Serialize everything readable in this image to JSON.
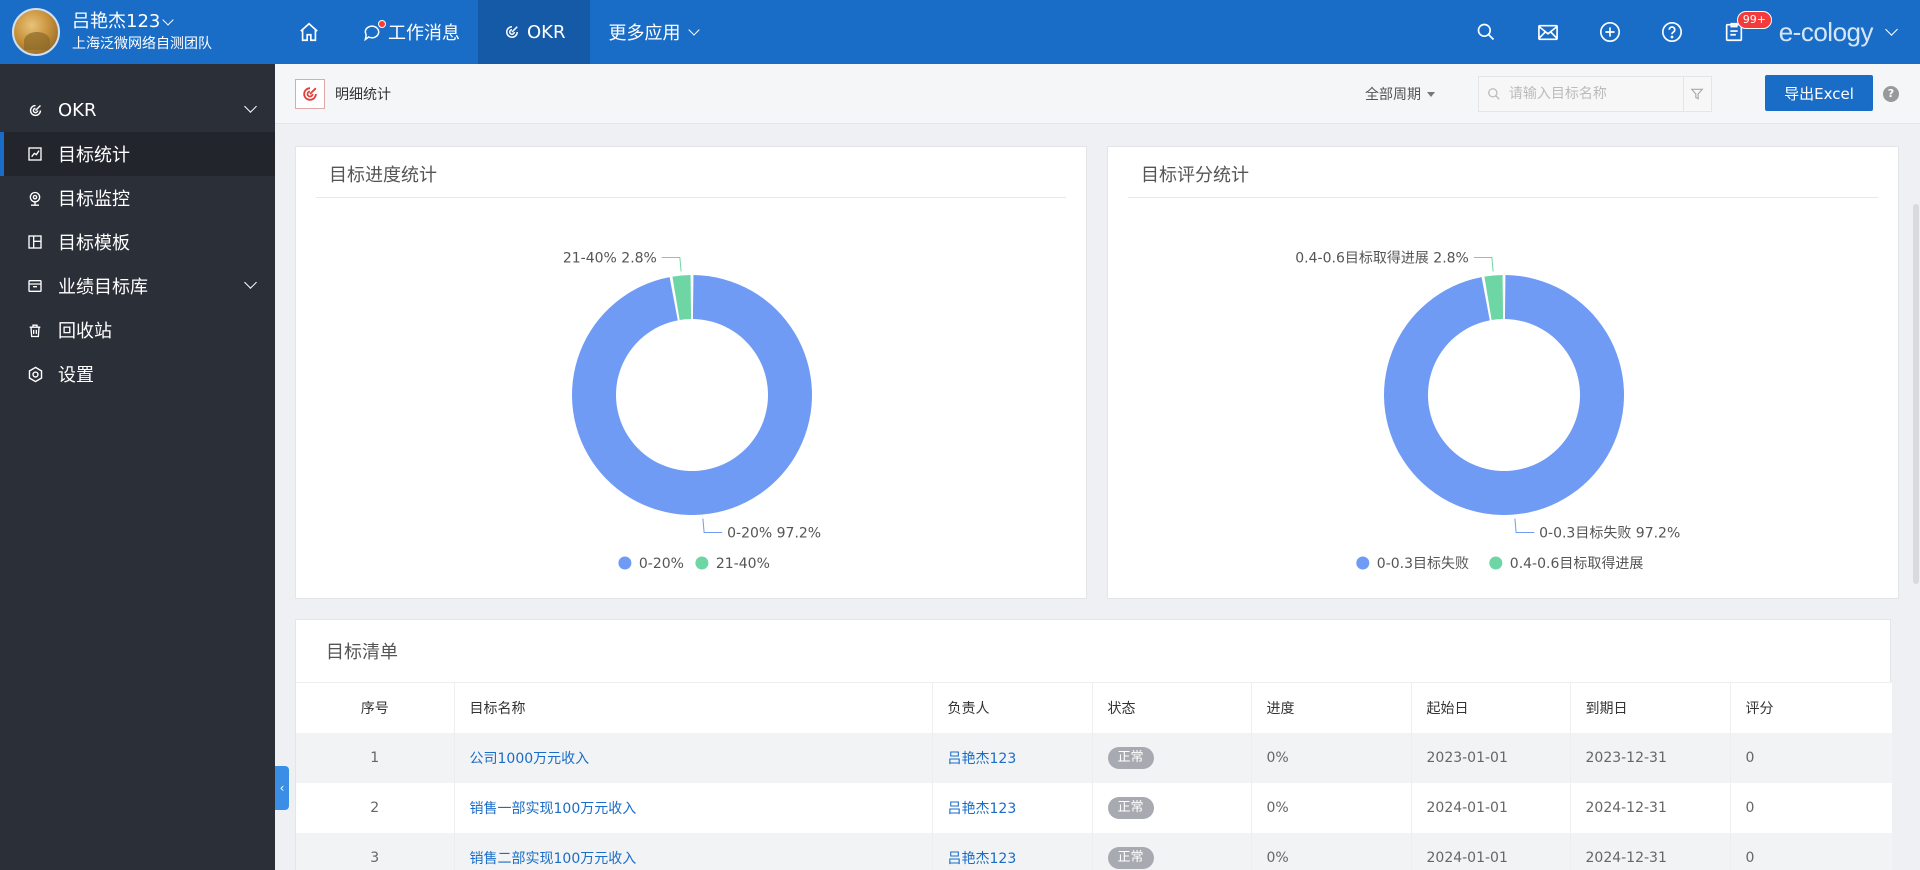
{
  "user": {
    "name": "吕艳杰123",
    "org": "上海泛微网络自测团队"
  },
  "nav": {
    "messages_label": "工作消息",
    "okr_label": "OKR",
    "more_label": "更多应用"
  },
  "header": {
    "badge": "99+",
    "brand": "e-cology"
  },
  "sidebar": {
    "items": [
      {
        "label": "OKR"
      },
      {
        "label": "目标统计"
      },
      {
        "label": "目标监控"
      },
      {
        "label": "目标模板"
      },
      {
        "label": "业绩目标库"
      },
      {
        "label": "回收站"
      },
      {
        "label": "设置"
      }
    ]
  },
  "subbar": {
    "title": "明细统计",
    "cycle": "全部周期",
    "search_placeholder": "请输入目标名称",
    "export_label": "导出Excel",
    "help": "?"
  },
  "colors": {
    "primary": "#1a6dc7",
    "slice_blue": "#6f9bf5",
    "slice_green": "#6ed6a4"
  },
  "chart_data": [
    {
      "type": "pie",
      "title": "目标进度统计",
      "categories": [
        "0-20%",
        "21-40%"
      ],
      "values": [
        97.2,
        2.8
      ],
      "labels": [
        "0-20% 97.2%",
        "21-40% 2.8%"
      ],
      "legend": [
        "0-20%",
        "21-40%"
      ],
      "legend_position": "bottom"
    },
    {
      "type": "pie",
      "title": "目标评分统计",
      "categories": [
        "0-0.3目标失败",
        "0.4-0.6目标取得进展"
      ],
      "values": [
        97.2,
        2.8
      ],
      "labels": [
        "0-0.3目标失败 97.2%",
        "0.4-0.6目标取得进展 2.8%"
      ],
      "legend": [
        "0-0.3目标失败",
        "0.4-0.6目标取得进展"
      ],
      "legend_position": "bottom"
    }
  ],
  "table": {
    "title": "目标清单",
    "columns": [
      "序号",
      "目标名称",
      "负责人",
      "状态",
      "进度",
      "起始日",
      "到期日",
      "评分"
    ],
    "rows": [
      {
        "no": "1",
        "name": "公司1000万元收入",
        "owner": "吕艳杰123",
        "status": "正常",
        "progress": "0%",
        "start": "2023-01-01",
        "end": "2023-12-31",
        "score": "0"
      },
      {
        "no": "2",
        "name": "销售一部实现100万元收入",
        "owner": "吕艳杰123",
        "status": "正常",
        "progress": "0%",
        "start": "2024-01-01",
        "end": "2024-12-31",
        "score": "0"
      },
      {
        "no": "3",
        "name": "销售二部实现100万元收入",
        "owner": "吕艳杰123",
        "status": "正常",
        "progress": "0%",
        "start": "2024-01-01",
        "end": "2024-12-31",
        "score": "0"
      }
    ]
  }
}
